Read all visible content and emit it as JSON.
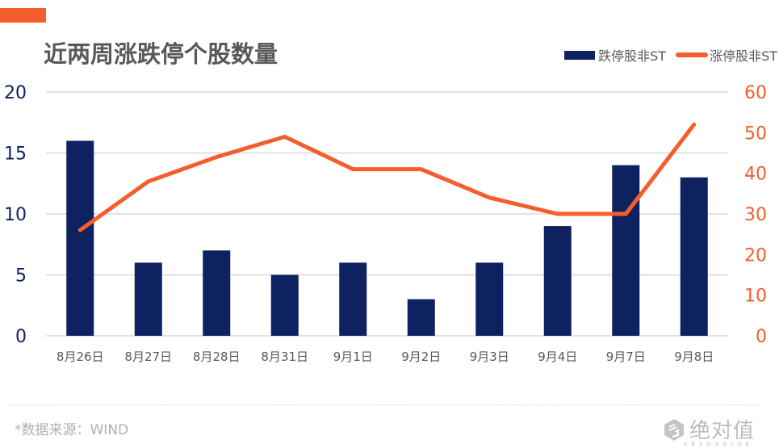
{
  "header": {
    "title": "近两周涨跌停个股数量",
    "accent_color": "#F45E2C"
  },
  "legend": {
    "items": [
      {
        "label": "跌停股非ST",
        "color": "#0E2161",
        "type": "bar"
      },
      {
        "label": "涨停股非ST",
        "color": "#F45E2C",
        "type": "line"
      }
    ]
  },
  "footer": {
    "source": "*数据来源：WIND",
    "logo_cn": "绝对值",
    "logo_en": "ABSOVALUE"
  },
  "chart_data": {
    "type": "bar+line",
    "title": "近两周涨跌停个股数量",
    "categories": [
      "8月26日",
      "8月27日",
      "8月28日",
      "8月31日",
      "9月1日",
      "9月2日",
      "9月3日",
      "9月4日",
      "9月7日",
      "9月8日"
    ],
    "series": [
      {
        "name": "跌停股非ST",
        "type": "bar",
        "axis": "left",
        "color": "#0E2161",
        "values": [
          16,
          6,
          7,
          5,
          6,
          3,
          6,
          9,
          14,
          13
        ]
      },
      {
        "name": "涨停股非ST",
        "type": "line",
        "axis": "right",
        "color": "#F45E2C",
        "values": [
          26,
          38,
          44,
          49,
          41,
          41,
          34,
          30,
          30,
          52
        ]
      }
    ],
    "left_axis": {
      "ticks": [
        "0",
        "5",
        "10",
        "15",
        "20"
      ],
      "range": [
        0,
        20
      ],
      "color": "#0E2161"
    },
    "right_axis": {
      "ticks": [
        "0",
        "10",
        "20",
        "30",
        "40",
        "50",
        "60"
      ],
      "range": [
        0,
        60
      ],
      "color": "#F45E2C"
    },
    "grid": true,
    "legend_position": "top-right",
    "xlabel": "",
    "ylabel": ""
  }
}
